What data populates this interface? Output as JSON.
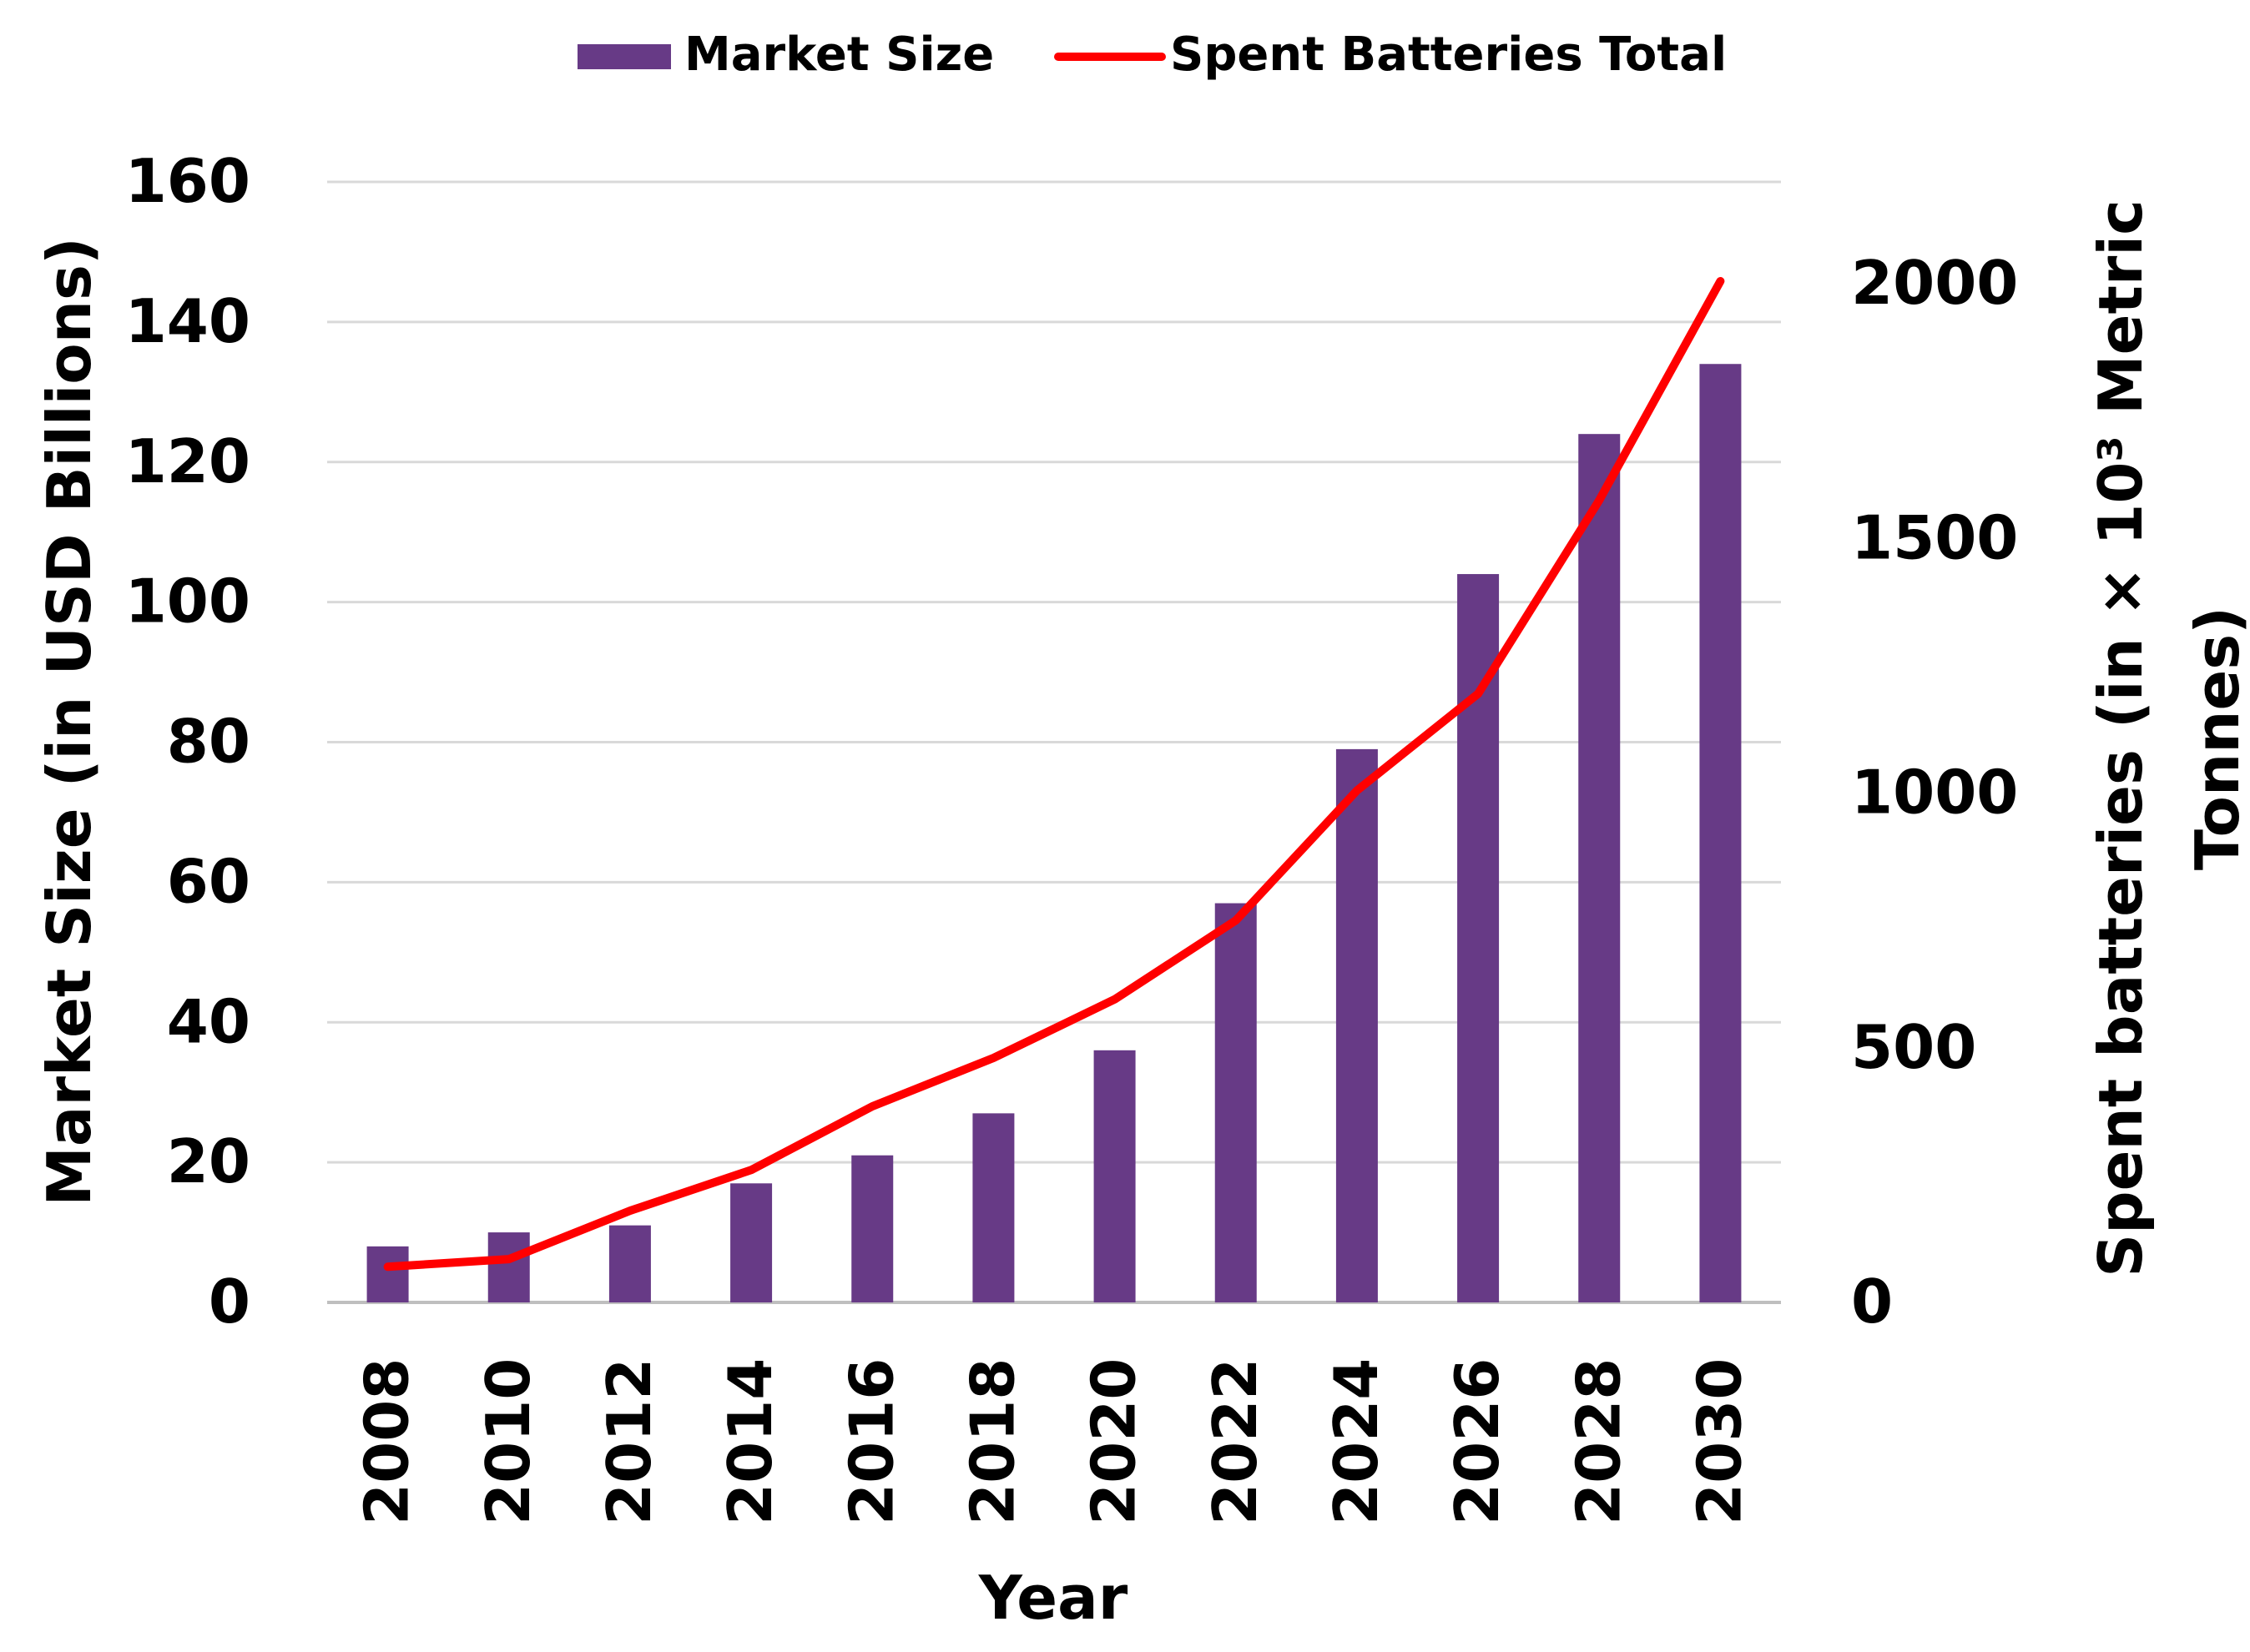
{
  "chart_data": {
    "type": "bar+line",
    "categories": [
      "2008",
      "2010",
      "2012",
      "2014",
      "2016",
      "2018",
      "2020",
      "2022",
      "2024",
      "2026",
      "2028",
      "2030"
    ],
    "series": [
      {
        "name": "Market Size",
        "type": "bar",
        "axis": "left",
        "color": "#673A86",
        "values": [
          8,
          10,
          11,
          17,
          21,
          27,
          36,
          57,
          79,
          104,
          124,
          134
        ]
      },
      {
        "name": "Spent Batteries Total",
        "type": "line",
        "axis": "right",
        "color": "#FF0000",
        "values": [
          70,
          85,
          180,
          260,
          385,
          480,
          595,
          750,
          1005,
          1195,
          1575,
          2005
        ]
      }
    ],
    "xlabel": "Year",
    "ylabel_left": "Market Size (in USD Billions)",
    "ylabel_right_line1": "Spent batteries (in × 10³ Metric",
    "ylabel_right_line2": "Tonnes)",
    "ylim_left": [
      0,
      160
    ],
    "yticks_left": [
      "0",
      "20",
      "40",
      "60",
      "80",
      "100",
      "120",
      "140",
      "160"
    ],
    "ylim_right": [
      0,
      2200
    ],
    "yticks_right": [
      "0",
      "500",
      "1000",
      "1500",
      "2000"
    ],
    "grid": true,
    "legend_position": "top"
  }
}
